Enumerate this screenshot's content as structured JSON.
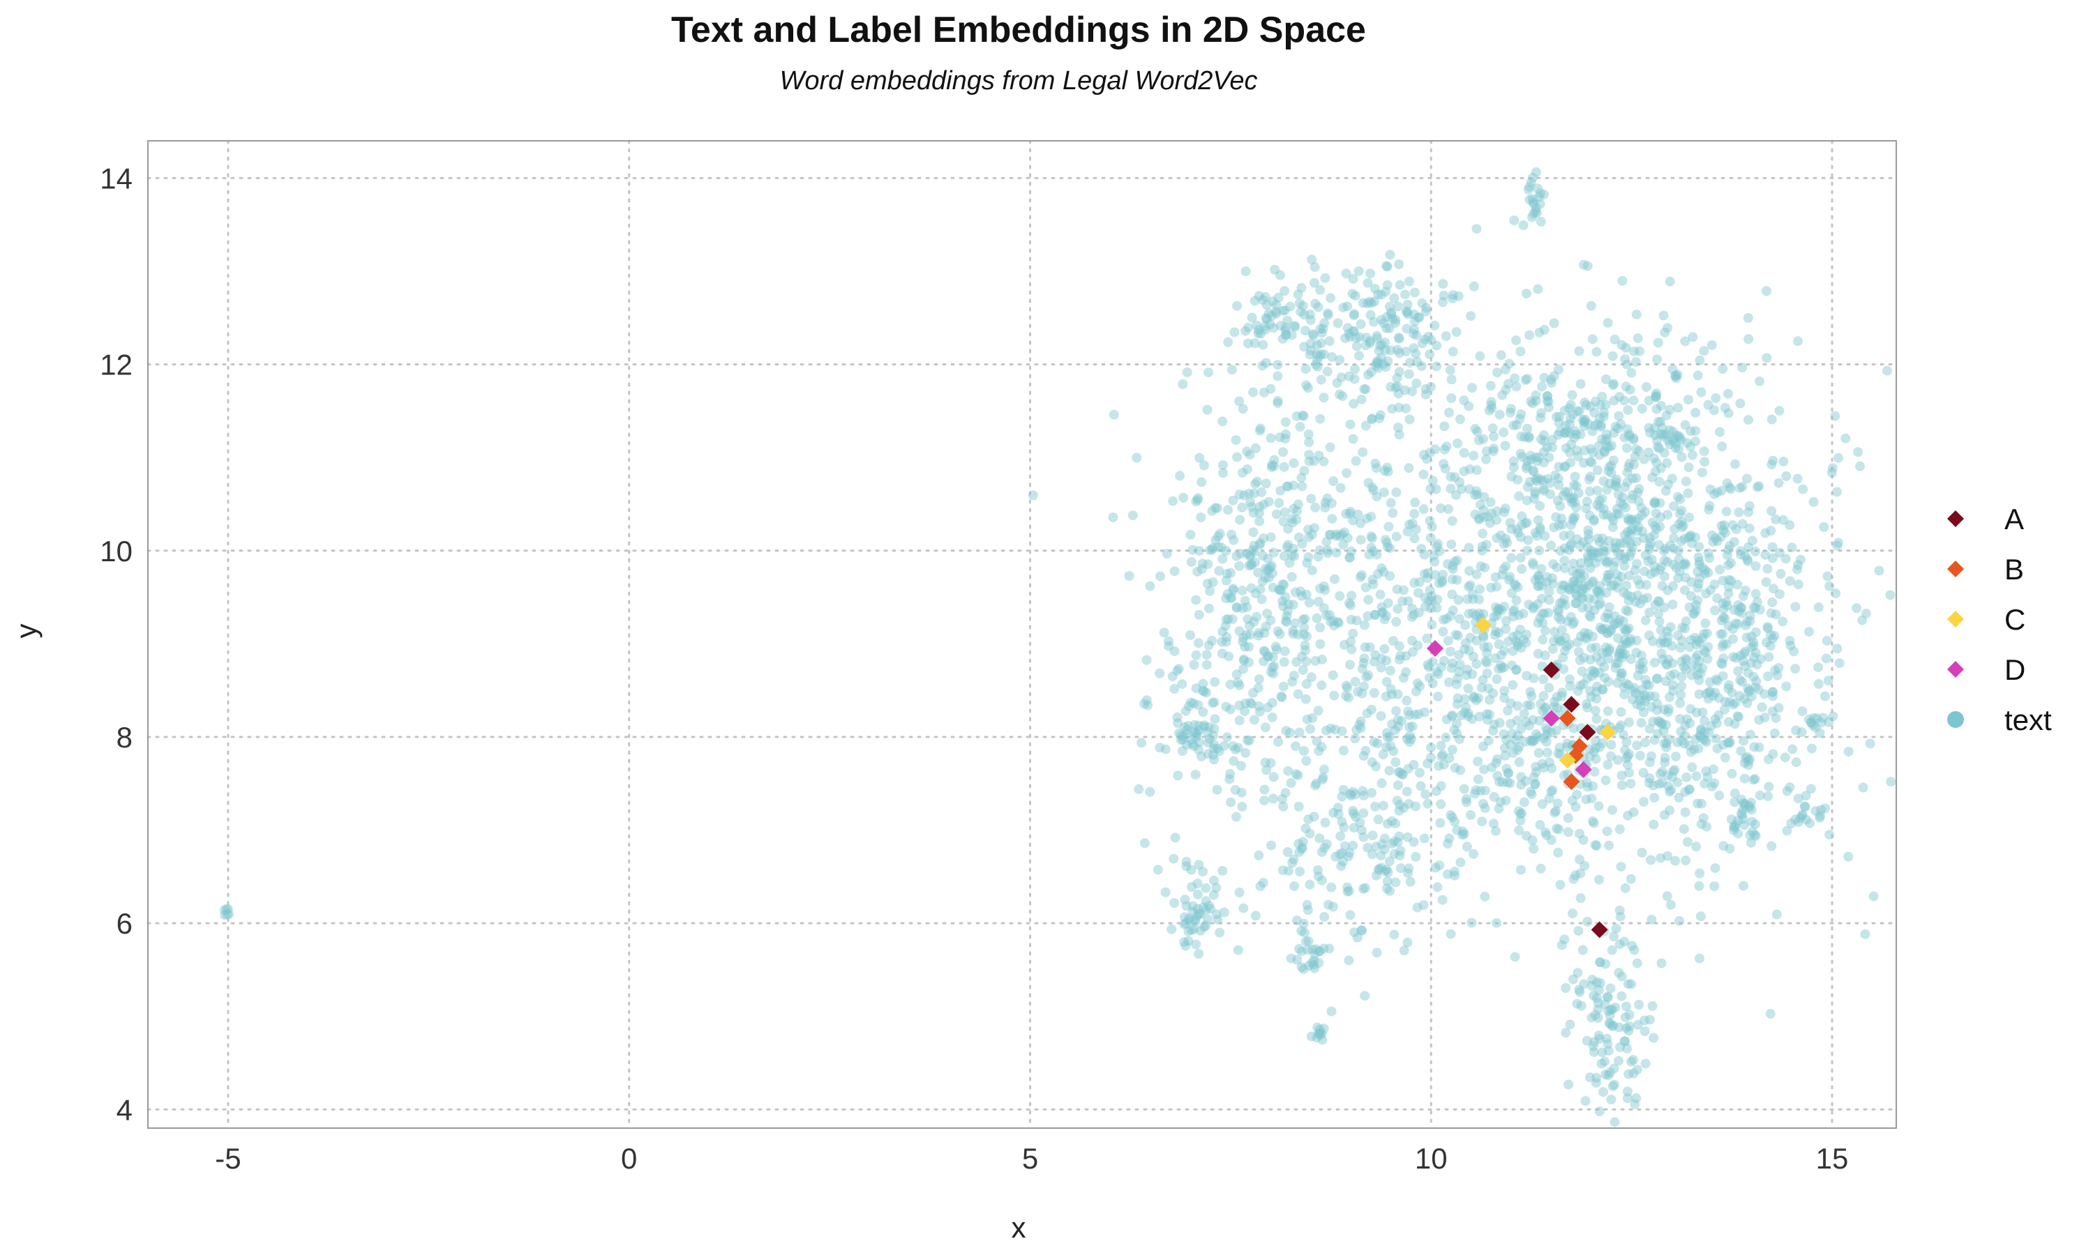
{
  "chart_data": {
    "type": "scatter",
    "title": "Text and Label Embeddings in 2D Space",
    "subtitle": "Word embeddings from Legal Word2Vec",
    "xlabel": "x",
    "ylabel": "y",
    "xlim": [
      -6.0,
      15.8
    ],
    "ylim": [
      3.8,
      14.4
    ],
    "xticks": [
      -5,
      0,
      5,
      10,
      15
    ],
    "yticks": [
      4,
      6,
      8,
      10,
      12,
      14
    ],
    "grid": true,
    "legend_position": "right",
    "series": [
      {
        "name": "A",
        "marker": "diamond",
        "color": "#7a0a1c",
        "points": [
          [
            11.5,
            8.72
          ],
          [
            11.75,
            8.35
          ],
          [
            11.95,
            8.05
          ],
          [
            12.1,
            5.93
          ]
        ]
      },
      {
        "name": "B",
        "marker": "diamond",
        "color": "#e8561f",
        "points": [
          [
            11.7,
            8.2
          ],
          [
            11.85,
            7.9
          ],
          [
            11.8,
            7.8
          ],
          [
            11.75,
            7.52
          ]
        ]
      },
      {
        "name": "C",
        "marker": "diamond",
        "color": "#fbd444",
        "points": [
          [
            10.65,
            9.2
          ],
          [
            12.2,
            8.05
          ],
          [
            11.7,
            7.75
          ]
        ]
      },
      {
        "name": "D",
        "marker": "diamond",
        "color": "#d63fb8",
        "points": [
          [
            10.05,
            8.95
          ],
          [
            11.5,
            8.2
          ],
          [
            11.9,
            7.65
          ]
        ]
      },
      {
        "name": "text",
        "marker": "circle",
        "color": "#7ec5cf",
        "generated_clusters": [
          {
            "cx": 11.0,
            "cy": 9.1,
            "sx": 1.9,
            "sy": 1.4,
            "n": 1300
          },
          {
            "cx": 12.6,
            "cy": 9.3,
            "sx": 1.0,
            "sy": 1.3,
            "n": 600
          },
          {
            "cx": 9.3,
            "cy": 12.3,
            "sx": 0.6,
            "sy": 0.4,
            "n": 180
          },
          {
            "cx": 8.1,
            "cy": 10.1,
            "sx": 0.6,
            "sy": 0.9,
            "n": 180
          },
          {
            "cx": 7.6,
            "cy": 8.9,
            "sx": 0.5,
            "sy": 0.9,
            "n": 160
          },
          {
            "cx": 12.6,
            "cy": 11.3,
            "sx": 0.6,
            "sy": 0.5,
            "n": 140
          },
          {
            "cx": 9.2,
            "cy": 6.9,
            "sx": 0.7,
            "sy": 0.6,
            "n": 160
          },
          {
            "cx": 12.3,
            "cy": 5.0,
            "sx": 0.25,
            "sy": 0.5,
            "n": 110
          },
          {
            "cx": 11.4,
            "cy": 11.2,
            "sx": 0.5,
            "sy": 0.4,
            "n": 90
          },
          {
            "cx": 13.8,
            "cy": 8.6,
            "sx": 0.4,
            "sy": 0.8,
            "n": 120
          },
          {
            "cx": 7.1,
            "cy": 6.2,
            "sx": 0.18,
            "sy": 0.25,
            "n": 50
          },
          {
            "cx": 7.1,
            "cy": 8.0,
            "sx": 0.2,
            "sy": 0.15,
            "n": 40
          },
          {
            "cx": 8.1,
            "cy": 12.45,
            "sx": 0.2,
            "sy": 0.15,
            "n": 40
          },
          {
            "cx": 11.3,
            "cy": 13.75,
            "sx": 0.05,
            "sy": 0.15,
            "n": 20
          },
          {
            "cx": -5.0,
            "cy": 6.12,
            "sx": 0.03,
            "sy": 0.03,
            "n": 6
          },
          {
            "cx": 14.7,
            "cy": 7.15,
            "sx": 0.12,
            "sy": 0.08,
            "n": 15
          },
          {
            "cx": 14.8,
            "cy": 8.15,
            "sx": 0.06,
            "sy": 0.05,
            "n": 10
          },
          {
            "cx": 8.6,
            "cy": 4.85,
            "sx": 0.05,
            "sy": 0.1,
            "n": 10
          },
          {
            "cx": 8.5,
            "cy": 5.7,
            "sx": 0.1,
            "sy": 0.2,
            "n": 20
          },
          {
            "cx": 13.9,
            "cy": 7.05,
            "sx": 0.1,
            "sy": 0.15,
            "n": 20
          }
        ]
      }
    ]
  }
}
